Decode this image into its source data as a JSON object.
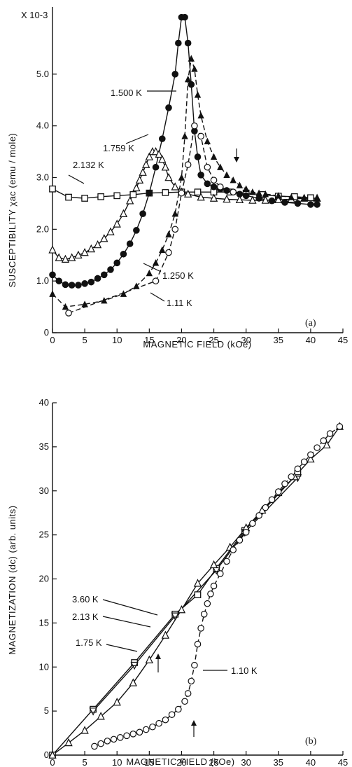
{
  "chart_data": [
    {
      "type": "scatter",
      "panel_label": "(a)",
      "xlabel": "MAGNETIC FIELD (kOe)",
      "ylabel": "SUSCEPTIBILITY χac (emu / mole)",
      "y_multiplier": "X 10-3",
      "xlim": [
        0,
        45
      ],
      "ylim": [
        0,
        6
      ],
      "x_ticks": [
        "0",
        "5",
        "10",
        "15",
        "20",
        "25",
        "30",
        "35",
        "40",
        "45"
      ],
      "y_ticks": [
        "0",
        "1.0",
        "2.0",
        "3.0",
        "4.0",
        "5.0"
      ],
      "series": [
        {
          "name": "2.132 K",
          "marker": "open-square",
          "line": "solid",
          "x": [
            0,
            2.5,
            5,
            7.5,
            10,
            12.5,
            15,
            17.5,
            20,
            22.5,
            25,
            27.5,
            30,
            32.5,
            35,
            37.5,
            40
          ],
          "y": [
            2.78,
            2.62,
            2.6,
            2.63,
            2.65,
            2.67,
            2.7,
            2.71,
            2.72,
            2.72,
            2.72,
            2.72,
            2.7,
            2.67,
            2.64,
            2.63,
            2.61
          ]
        },
        {
          "name": "1.759 K",
          "marker": "open-triangle",
          "line": "solid",
          "x": [
            0,
            1,
            2,
            3,
            4,
            5,
            6,
            7,
            8,
            9,
            10,
            11,
            12,
            13,
            13.5,
            14,
            14.5,
            15,
            15.5,
            16,
            16.5,
            17,
            17.5,
            18,
            19,
            20,
            21,
            23,
            25,
            27,
            29,
            31,
            33,
            35,
            37,
            39,
            41
          ],
          "y": [
            1.6,
            1.45,
            1.42,
            1.45,
            1.5,
            1.55,
            1.62,
            1.7,
            1.82,
            1.95,
            2.1,
            2.3,
            2.55,
            2.8,
            2.95,
            3.1,
            3.25,
            3.4,
            3.5,
            3.5,
            3.45,
            3.35,
            3.2,
            3.0,
            2.82,
            2.72,
            2.68,
            2.62,
            2.6,
            2.58,
            2.57,
            2.56,
            2.56,
            2.57,
            2.58,
            2.6,
            2.6
          ]
        },
        {
          "name": "1.500 K",
          "marker": "filled-circle",
          "line": "solid",
          "x": [
            0,
            1,
            2,
            3,
            4,
            5,
            6,
            7,
            8,
            9,
            10,
            11,
            12,
            13,
            14,
            15,
            16,
            17,
            18,
            19,
            19.5,
            20,
            20.5,
            21,
            21.5,
            22,
            22.5,
            23,
            24,
            25,
            26,
            27,
            28,
            29,
            30,
            32,
            34,
            36,
            38,
            40,
            41
          ],
          "y": [
            1.12,
            1.0,
            0.93,
            0.92,
            0.92,
            0.95,
            0.98,
            1.05,
            1.12,
            1.22,
            1.35,
            1.52,
            1.72,
            1.98,
            2.3,
            2.7,
            3.2,
            3.75,
            4.35,
            5.0,
            5.6,
            6.1,
            6.1,
            5.6,
            4.8,
            3.9,
            3.4,
            3.05,
            2.88,
            2.82,
            2.78,
            2.75,
            2.72,
            2.68,
            2.65,
            2.6,
            2.55,
            2.52,
            2.5,
            2.48,
            2.48
          ]
        },
        {
          "name": "1.250 K",
          "marker": "filled-triangle",
          "line": "dashed",
          "x": [
            0,
            2,
            5,
            8,
            11,
            13,
            15,
            16,
            17,
            18,
            19,
            20,
            20.5,
            21,
            21.5,
            22,
            22.5,
            23,
            24,
            25,
            26,
            27,
            28,
            29,
            30,
            31,
            32,
            33,
            35,
            37,
            39,
            41
          ],
          "y": [
            0.75,
            0.5,
            0.55,
            0.62,
            0.75,
            0.9,
            1.15,
            1.35,
            1.6,
            1.9,
            2.3,
            3.0,
            3.8,
            4.9,
            5.3,
            5.1,
            4.6,
            4.2,
            3.7,
            3.4,
            3.2,
            3.05,
            2.95,
            2.85,
            2.78,
            2.72,
            2.7,
            2.68,
            2.65,
            2.62,
            2.6,
            2.6
          ]
        },
        {
          "name": "1.11 K",
          "marker": "open-circle",
          "line": "dashed",
          "x": [
            2.5,
            16,
            18,
            19,
            20,
            21,
            22,
            23,
            24,
            25,
            26,
            28
          ],
          "y": [
            0.38,
            1.0,
            1.55,
            2.0,
            2.7,
            3.25,
            4.0,
            3.8,
            3.2,
            2.95,
            2.82,
            2.72
          ]
        }
      ],
      "annotations": [
        "1.500 K",
        "1.759 K",
        "2.132 K",
        "1.250 K",
        "1.11 K"
      ]
    },
    {
      "type": "scatter",
      "panel_label": "(b)",
      "xlabel": "MAGNETIC FIELD (kOe)",
      "ylabel": "MAGNETIZATION (dc) (arb. units)",
      "xlim": [
        0,
        45
      ],
      "ylim": [
        0,
        40
      ],
      "x_ticks": [
        "0",
        "5",
        "10",
        "15",
        "20",
        "25",
        "30",
        "35",
        "40",
        "45"
      ],
      "y_ticks": [
        "0",
        "5",
        "10",
        "15",
        "20",
        "25",
        "30",
        "35",
        "40"
      ],
      "series": [
        {
          "name": "3.60 K",
          "marker": "open-square",
          "line": "solid",
          "x": [
            0,
            6.3,
            12.7,
            19,
            22.5,
            25.4,
            29.8,
            38
          ],
          "y": [
            0,
            5.2,
            10.5,
            16,
            18.2,
            21.2,
            25.5,
            32
          ]
        },
        {
          "name": "2.13 K",
          "marker": "open-inverted-triangle",
          "line": "solid",
          "x": [
            6.3,
            12.7,
            19,
            25.4,
            29.8,
            38
          ],
          "y": [
            5.0,
            10.2,
            15.8,
            21,
            25.3,
            31.5
          ]
        },
        {
          "name": "1.75 K",
          "marker": "open-triangle",
          "line": "solid",
          "x": [
            0,
            2.5,
            5,
            7.5,
            10,
            12.5,
            15,
            17.5,
            20,
            22.5,
            25,
            27.5,
            30,
            32.5,
            35,
            37.5,
            40,
            42.5,
            44.5
          ],
          "y": [
            0,
            1.4,
            2.8,
            4.4,
            6.0,
            8.2,
            10.8,
            13.6,
            16.5,
            19.5,
            21.6,
            23.6,
            25.8,
            27.8,
            29.8,
            31.6,
            33.6,
            35.2,
            37.3
          ]
        },
        {
          "name": "1.10 K",
          "marker": "open-circle",
          "line": "dashed",
          "x": [
            6.5,
            7.5,
            8.5,
            9.5,
            10.5,
            11.5,
            12.5,
            13.5,
            14.5,
            15.5,
            16.5,
            17.5,
            18.5,
            19.5,
            20.5,
            21,
            21.5,
            22,
            22.5,
            23,
            23.5,
            24,
            24.5,
            25,
            26,
            27,
            28,
            29,
            30,
            31,
            32,
            33,
            34,
            35,
            36,
            37,
            38,
            39,
            40,
            41,
            42,
            43,
            44.5
          ],
          "y": [
            1.0,
            1.3,
            1.6,
            1.8,
            2.0,
            2.2,
            2.4,
            2.6,
            2.9,
            3.2,
            3.6,
            4.0,
            4.6,
            5.2,
            6.1,
            7.0,
            8.4,
            10.2,
            12.6,
            14.4,
            16.0,
            17.2,
            18.3,
            19.2,
            20.6,
            22.0,
            23.3,
            24.4,
            25.3,
            26.3,
            27.2,
            28.1,
            29.0,
            29.9,
            30.8,
            31.6,
            32.5,
            33.3,
            34.1,
            34.9,
            35.7,
            36.5,
            37.3
          ]
        }
      ],
      "annotations": [
        "3.60 K",
        "2.13 K",
        "1.75 K",
        "1.10 K"
      ]
    }
  ]
}
